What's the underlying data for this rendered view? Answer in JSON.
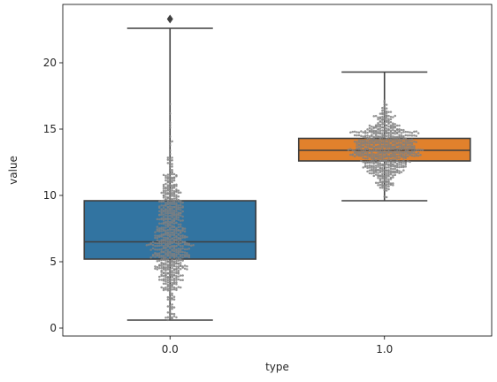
{
  "chart_data": {
    "type": "box",
    "xlabel": "type",
    "ylabel": "value",
    "ylim": [
      -0.6,
      24.4
    ],
    "yticks": [
      0,
      5,
      10,
      15,
      20
    ],
    "categories": [
      "0.0",
      "1.0"
    ],
    "grid": false,
    "series": [
      {
        "category": "0.0",
        "color": "#3274a1",
        "whisker_low": 0.6,
        "q1": 5.2,
        "median": 6.5,
        "q3": 9.6,
        "whisker_high": 22.6,
        "outliers": [
          23.3
        ],
        "swarm": {
          "count": 700,
          "center": 6.6,
          "spread": 3.2,
          "min": 0.6,
          "max": 22.6
        }
      },
      {
        "category": "1.0",
        "color": "#e1812c",
        "whisker_low": 9.6,
        "q1": 12.6,
        "median": 13.4,
        "q3": 14.3,
        "whisker_high": 19.3,
        "outliers": [],
        "swarm": {
          "count": 700,
          "center": 13.4,
          "spread": 1.35,
          "min": 9.7,
          "max": 19.2
        }
      }
    ],
    "point_color": "#808080",
    "line_color": "#3f3f3f"
  }
}
